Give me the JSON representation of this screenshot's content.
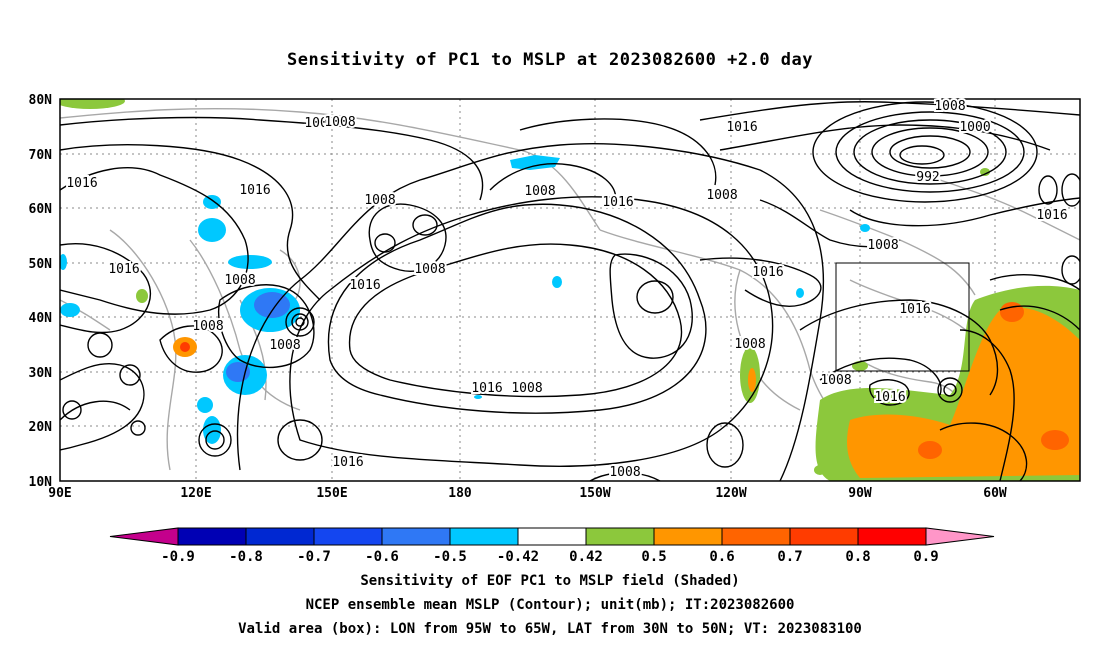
{
  "title": "Sensitivity of PC1 to MSLP at 2023082600 +2.0 day",
  "map": {
    "lat_labels": [
      "80N",
      "70N",
      "60N",
      "50N",
      "40N",
      "30N",
      "20N",
      "10N"
    ],
    "lon_labels": [
      "90E",
      "120E",
      "150E",
      "180",
      "150W",
      "120W",
      "90W",
      "60W"
    ],
    "lat_range": [
      10,
      80
    ],
    "lon_range": [
      "90E",
      "50W"
    ],
    "gridlines": "dotted",
    "valid_box": {
      "lon": [
        "95W",
        "65W"
      ],
      "lat": [
        "30N",
        "50N"
      ]
    }
  },
  "contour_labels": [
    "1008",
    "1016",
    "1016",
    "1016",
    "1008",
    "1008",
    "1008",
    "1008",
    "1016",
    "1008",
    "1016",
    "1008",
    "1016",
    "1008",
    "1000",
    "992",
    "1016",
    "1008",
    "1016",
    "1008",
    "1016",
    "1008",
    "1008",
    "1016",
    "1016",
    "1008",
    "1008"
  ],
  "colorbar": {
    "ticks": [
      "-0.9",
      "-0.8",
      "-0.7",
      "-0.6",
      "-0.5",
      "-0.42",
      "0.42",
      "0.5",
      "0.6",
      "0.7",
      "0.8",
      "0.9"
    ],
    "colors": [
      "#c4008c",
      "#0000b4",
      "#0028d2",
      "#1446f0",
      "#2f78f5",
      "#00c8ff",
      "#ffffff",
      "#8cc83c",
      "#ff9600",
      "#ff6400",
      "#ff3c00",
      "#ff0000",
      "#ff96c8"
    ]
  },
  "footer": {
    "line1": "Sensitivity of EOF PC1 to MSLP field (Shaded)",
    "line2": "NCEP ensemble mean MSLP (Contour); unit(mb); IT:2023082600",
    "line3": "Valid area (box): LON from 95W to 65W, LAT from 30N to 50N; VT: 2023083100"
  }
}
